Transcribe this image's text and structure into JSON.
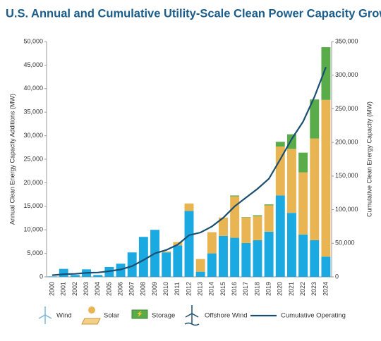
{
  "chart_data": {
    "type": "bar",
    "title": "U.S. Annual and Cumulative Utility-Scale Clean Power Capacity Growth",
    "y_label": "Annual Clean Energy Capacity Additions (MW)",
    "y2_label": "Cumulative Clean Energy Capacity (MW)",
    "stacked": true,
    "grid": false,
    "categories": [
      "2000",
      "2001",
      "2002",
      "2003",
      "2004",
      "2005",
      "2006",
      "2007",
      "2008",
      "2009",
      "2010",
      "2011",
      "2012",
      "2013",
      "2014",
      "2015",
      "2016",
      "2017",
      "2018",
      "2019",
      "2020",
      "2021",
      "2022",
      "2023",
      "2024"
    ],
    "ylim": [
      0,
      50000
    ],
    "yticks": [
      0,
      {
        "value": 5000,
        "label": "5,000"
      },
      {
        "value": 10000,
        "label": "10,000"
      },
      {
        "value": 15000,
        "label": "15,000"
      },
      {
        "value": 20000,
        "label": "20,000"
      },
      {
        "value": 25000,
        "label": "25,000"
      },
      {
        "value": 30000,
        "label": "30,000"
      },
      {
        "value": 35000,
        "label": "35,000"
      },
      {
        "value": 40000,
        "label": "40,000"
      },
      {
        "value": 45000,
        "label": "45,000"
      },
      {
        "value": 50000,
        "label": "50,000"
      }
    ],
    "y2lim": [
      0,
      350000
    ],
    "y2ticks": [
      0,
      {
        "value": 50000,
        "label": "50,000"
      },
      {
        "value": 100000,
        "label": "100,000"
      },
      {
        "value": 150000,
        "label": "150,000"
      },
      {
        "value": 200000,
        "label": "200,000"
      },
      {
        "value": 250000,
        "label": "250,000"
      },
      {
        "value": 300000,
        "label": "300,000"
      },
      {
        "value": 350000,
        "label": "350,000"
      }
    ],
    "series": [
      {
        "name": "Wind",
        "color": "#1ba9e1",
        "values": [
          100,
          1700,
          400,
          1600,
          400,
          2100,
          2800,
          5200,
          8500,
          10000,
          5200,
          6700,
          14000,
          1100,
          5000,
          8700,
          8300,
          7200,
          7800,
          9600,
          17300,
          13600,
          9000,
          7800,
          4300
        ]
      },
      {
        "name": "Solar",
        "color": "#e9b452",
        "values": [
          0,
          0,
          0,
          0,
          0,
          0,
          0,
          0,
          0,
          0,
          200,
          700,
          1600,
          2700,
          4500,
          3900,
          8800,
          5400,
          5100,
          5600,
          10400,
          13600,
          13200,
          21600,
          33300
        ]
      },
      {
        "name": "Storage",
        "color": "#5aab4a",
        "values": [
          0,
          0,
          0,
          0,
          0,
          0,
          0,
          0,
          0,
          0,
          0,
          0,
          0,
          0,
          0,
          0,
          200,
          100,
          200,
          200,
          1000,
          3100,
          4200,
          8300,
          11200
        ]
      },
      {
        "name": "Offshore Wind",
        "color": "#1c4e6e",
        "values": [
          0,
          0,
          0,
          0,
          0,
          0,
          0,
          0,
          0,
          0,
          0,
          0,
          0,
          0,
          0,
          0,
          0,
          0,
          0,
          0,
          0,
          0,
          0,
          0,
          0
        ]
      },
      {
        "name": "Cumulative Operating",
        "color": "#1b4f72",
        "axis": "y2",
        "values": [
          2500,
          4000,
          4500,
          6000,
          6500,
          8500,
          11000,
          16000,
          25000,
          35000,
          40000,
          48000,
          62000,
          66000,
          75000,
          88000,
          105000,
          118000,
          131000,
          146000,
          175000,
          205000,
          231000,
          268000,
          312000
        ]
      }
    ]
  }
}
